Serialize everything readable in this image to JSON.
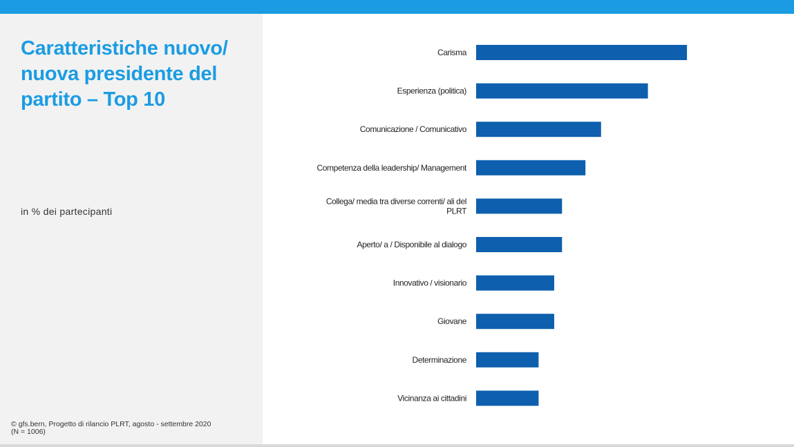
{
  "colors": {
    "accent": "#1b9ce2",
    "bar": "#0e5fae",
    "panel": "#f2f2f2"
  },
  "title": "Caratteristiche nuovo/ nuova presidente del partito – Top 10",
  "subtitle": "in % dei partecipanti",
  "source": {
    "line1": "©  gfs.bern, Progetto di rilancio PLRT, agosto - settembre 2020",
    "line2": "(N = 1006)"
  },
  "chart_data": {
    "type": "bar",
    "orientation": "horizontal",
    "categories": [
      [
        "Carisma"
      ],
      [
        "Esperienza (politica)"
      ],
      [
        "Comunicazione / Comunicativo"
      ],
      [
        "Competenza della leadership/ Management"
      ],
      [
        "Collega/ media tra diverse correnti/ ali del",
        "PLRT"
      ],
      [
        "Aperto/ a / Disponibile al dialogo"
      ],
      [
        "Innovativo /  visionario"
      ],
      [
        "Giovane"
      ],
      [
        "Determinazione"
      ],
      [
        "Vicinanza ai cittadini"
      ]
    ],
    "values": [
      27,
      22,
      16,
      14,
      11,
      11,
      10,
      10,
      8,
      8
    ],
    "xlim": [
      0,
      30
    ],
    "axis_labels_shown": false,
    "grid": false,
    "legend": "none"
  }
}
